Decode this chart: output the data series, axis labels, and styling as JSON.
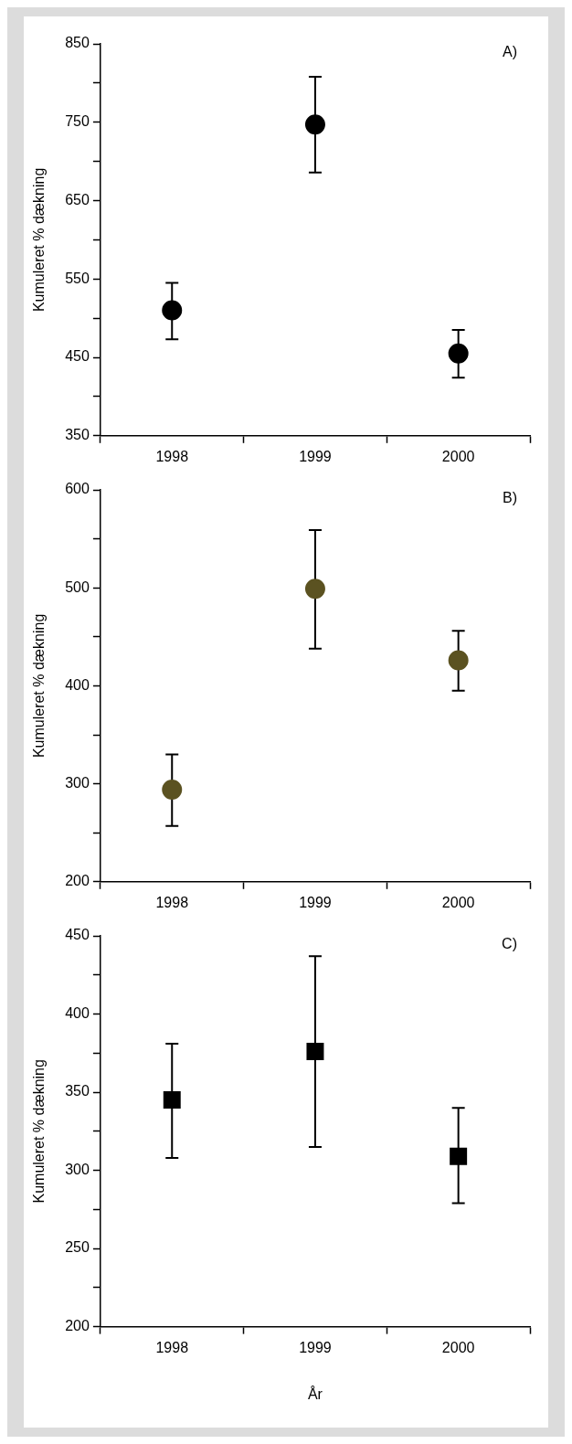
{
  "chart_data": [
    {
      "type": "scatter",
      "categories": [
        "1998",
        "1999",
        "2000"
      ],
      "ylabel": "Kumuleret % dækning",
      "annotations": [
        "A)"
      ],
      "marker": "circle",
      "grid": false,
      "legend": false,
      "series": [
        {
          "color": "#000000",
          "values": [
            510,
            747,
            455
          ],
          "errors": [
            [
              473,
              545
            ],
            [
              686,
              808
            ],
            [
              424,
              485
            ]
          ]
        }
      ],
      "ylim": [
        350,
        850
      ],
      "yticks": [
        350,
        {
          "value": 400,
          "label": null
        },
        450,
        {
          "value": 500,
          "label": null
        },
        550,
        {
          "value": 600,
          "label": null
        },
        650,
        {
          "value": 700,
          "label": null
        },
        750,
        {
          "value": 800,
          "label": null
        },
        850
      ]
    },
    {
      "type": "scatter",
      "categories": [
        "1998",
        "1999",
        "2000"
      ],
      "ylabel": "Kumuleret % dækning",
      "annotations": [
        "B)"
      ],
      "marker": "circle",
      "grid": false,
      "legend": false,
      "series": [
        {
          "color": "#5b5221",
          "values": [
            294,
            499,
            426
          ],
          "errors": [
            [
              257,
              330
            ],
            [
              438,
              559
            ],
            [
              395,
              456
            ]
          ]
        }
      ],
      "ylim": [
        200,
        600
      ],
      "yticks": [
        200,
        {
          "value": 250,
          "label": null
        },
        300,
        {
          "value": 350,
          "label": null
        },
        400,
        {
          "value": 450,
          "label": null
        },
        500,
        {
          "value": 550,
          "label": null
        },
        600
      ]
    },
    {
      "type": "scatter",
      "categories": [
        "1998",
        "1999",
        "2000"
      ],
      "xlabel": "År",
      "ylabel": "Kumuleret % dækning",
      "annotations": [
        "C)"
      ],
      "marker": "square",
      "grid": false,
      "legend": false,
      "series": [
        {
          "color": "#000000",
          "values": [
            345,
            376,
            309
          ],
          "errors": [
            [
              308,
              381
            ],
            [
              315,
              437
            ],
            [
              279,
              340
            ]
          ]
        }
      ],
      "ylim": [
        200,
        450
      ],
      "yticks": [
        200,
        {
          "value": 225,
          "label": null
        },
        250,
        {
          "value": 275,
          "label": null
        },
        300,
        {
          "value": 325,
          "label": null
        },
        350,
        {
          "value": 375,
          "label": null
        },
        400,
        {
          "value": 425,
          "label": null
        },
        450
      ]
    }
  ]
}
